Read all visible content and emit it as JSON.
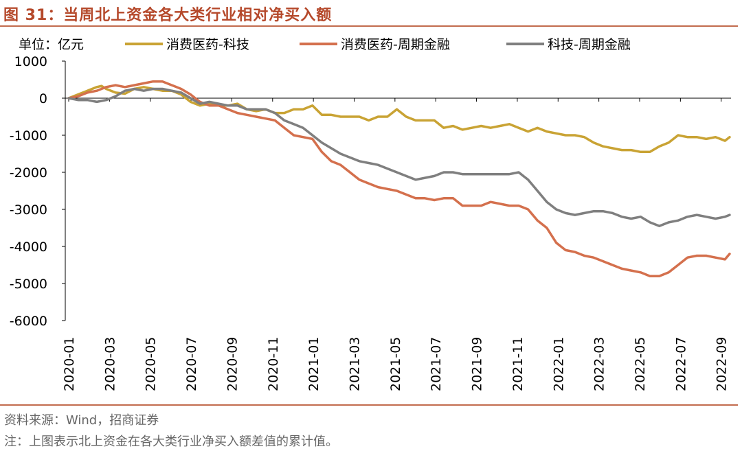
{
  "header": {
    "title": "图 31：当周北上资金各大类行业相对净买入额"
  },
  "footer": {
    "source": "资料来源：Wind，招商证券",
    "note": "注：上图表示北上资金在各大类行业净买入额差值的累计值。"
  },
  "chart_data": {
    "type": "line",
    "unit_label": "单位：亿元",
    "ylim": [
      -6000,
      1000
    ],
    "yticks": [
      1000,
      0,
      -1000,
      -2000,
      -3000,
      -4000,
      -5000,
      -6000
    ],
    "xlim": [
      0,
      141
    ],
    "xtick_labels": [
      "2020-01",
      "2020-03",
      "2020-05",
      "2020-07",
      "2020-09",
      "2020-11",
      "2021-01",
      "2021-03",
      "2021-05",
      "2021-07",
      "2021-09",
      "2021-11",
      "2022-01",
      "2022-03",
      "2022-05",
      "2022-07",
      "2022-09"
    ],
    "xtick_positions": [
      0,
      8.7,
      17.4,
      26.1,
      34.8,
      43.5,
      52.2,
      60.9,
      69.6,
      78.3,
      87,
      95.7,
      104.4,
      113.1,
      121.8,
      130.5,
      139.2
    ],
    "series": [
      {
        "name": "消费医药-科技",
        "color": "#c9a334",
        "x": [
          0,
          2,
          4,
          6,
          7,
          8,
          10,
          12,
          14,
          16,
          18,
          20,
          22,
          24,
          26,
          28,
          30,
          32,
          34,
          36,
          38,
          40,
          42,
          44,
          46,
          48,
          50,
          52,
          54,
          56,
          58,
          60,
          62,
          64,
          66,
          68,
          70,
          72,
          74,
          76,
          78,
          80,
          82,
          84,
          86,
          88,
          90,
          92,
          94,
          96,
          98,
          100,
          102,
          104,
          106,
          108,
          110,
          112,
          114,
          116,
          118,
          120,
          122,
          124,
          126,
          128,
          130,
          132,
          134,
          136,
          138,
          139,
          140,
          141
        ],
        "y": [
          0,
          100,
          200,
          300,
          330,
          250,
          150,
          120,
          250,
          300,
          250,
          200,
          200,
          100,
          -100,
          -200,
          -150,
          -200,
          -200,
          -150,
          -300,
          -350,
          -300,
          -400,
          -400,
          -300,
          -300,
          -200,
          -450,
          -450,
          -500,
          -500,
          -500,
          -600,
          -500,
          -500,
          -300,
          -500,
          -600,
          -600,
          -600,
          -800,
          -750,
          -850,
          -800,
          -750,
          -800,
          -750,
          -700,
          -800,
          -900,
          -800,
          -900,
          -950,
          -1000,
          -1000,
          -1050,
          -1200,
          -1300,
          -1350,
          -1400,
          -1400,
          -1450,
          -1450,
          -1300,
          -1200,
          -1000,
          -1050,
          -1050,
          -1100,
          -1050,
          -1100,
          -1150,
          -1050
        ]
      },
      {
        "name": "消费医药-周期金融",
        "color": "#d4704d",
        "x": [
          0,
          2,
          4,
          6,
          8,
          10,
          12,
          14,
          16,
          18,
          20,
          22,
          24,
          26,
          28,
          30,
          32,
          34,
          36,
          38,
          40,
          42,
          44,
          46,
          48,
          50,
          52,
          54,
          56,
          58,
          60,
          62,
          64,
          66,
          68,
          70,
          72,
          74,
          76,
          78,
          80,
          82,
          84,
          86,
          88,
          90,
          92,
          94,
          96,
          98,
          100,
          102,
          104,
          106,
          108,
          110,
          112,
          114,
          116,
          118,
          120,
          122,
          124,
          126,
          128,
          130,
          132,
          134,
          136,
          138,
          140,
          141
        ],
        "y": [
          0,
          50,
          150,
          200,
          300,
          350,
          300,
          350,
          400,
          450,
          450,
          350,
          250,
          100,
          -100,
          -200,
          -200,
          -300,
          -400,
          -450,
          -500,
          -550,
          -600,
          -800,
          -1000,
          -1050,
          -1100,
          -1450,
          -1700,
          -1800,
          -2000,
          -2200,
          -2300,
          -2400,
          -2450,
          -2500,
          -2600,
          -2700,
          -2700,
          -2750,
          -2700,
          -2700,
          -2900,
          -2900,
          -2900,
          -2800,
          -2850,
          -2900,
          -2900,
          -3000,
          -3300,
          -3500,
          -3900,
          -4100,
          -4150,
          -4250,
          -4300,
          -4400,
          -4500,
          -4600,
          -4650,
          -4700,
          -4800,
          -4800,
          -4700,
          -4500,
          -4300,
          -4250,
          -4250,
          -4300,
          -4350,
          -4200
        ]
      },
      {
        "name": "科技-周期金融",
        "color": "#7f7f7f",
        "x": [
          0,
          2,
          4,
          6,
          8,
          10,
          12,
          14,
          16,
          18,
          20,
          22,
          24,
          26,
          28,
          30,
          32,
          34,
          36,
          38,
          40,
          42,
          44,
          46,
          48,
          50,
          52,
          54,
          56,
          58,
          60,
          62,
          64,
          66,
          68,
          70,
          72,
          74,
          76,
          78,
          80,
          82,
          84,
          86,
          88,
          90,
          92,
          94,
          96,
          98,
          100,
          102,
          104,
          106,
          108,
          110,
          112,
          114,
          116,
          118,
          120,
          122,
          124,
          126,
          128,
          130,
          132,
          134,
          136,
          138,
          140,
          141
        ],
        "y": [
          0,
          -50,
          -50,
          -100,
          -50,
          50,
          200,
          250,
          200,
          250,
          250,
          200,
          150,
          0,
          -150,
          -100,
          -150,
          -200,
          -200,
          -300,
          -300,
          -300,
          -400,
          -600,
          -700,
          -800,
          -1000,
          -1200,
          -1350,
          -1500,
          -1600,
          -1700,
          -1750,
          -1800,
          -1900,
          -2000,
          -2100,
          -2200,
          -2150,
          -2100,
          -2000,
          -2000,
          -2050,
          -2050,
          -2050,
          -2050,
          -2050,
          -2050,
          -2000,
          -2200,
          -2500,
          -2800,
          -3000,
          -3100,
          -3150,
          -3100,
          -3050,
          -3050,
          -3100,
          -3200,
          -3250,
          -3200,
          -3350,
          -3450,
          -3350,
          -3300,
          -3200,
          -3150,
          -3200,
          -3250,
          -3200,
          -3150
        ]
      }
    ]
  }
}
